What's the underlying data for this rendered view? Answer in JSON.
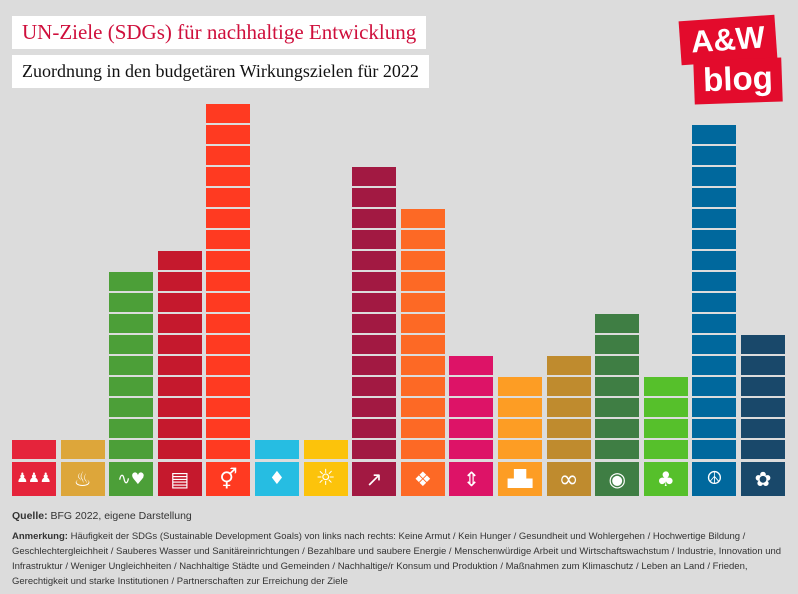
{
  "logo": {
    "line1": "A&W",
    "line2": "blog",
    "color": "#e30b2c"
  },
  "chart_data": {
    "type": "bar",
    "title": "UN-Ziele (SDGs) für nachhaltige Entwicklung",
    "subtitle": "Zuordnung in den budgetären Wirkungszielen für 2022",
    "categories": [
      "Keine Armut",
      "Kein Hunger",
      "Gesundheit und Wohlergehen",
      "Hochwertige Bildung",
      "Geschlechtergleichheit",
      "Sauberes Wasser und Sanitäreinrichtungen",
      "Bezahlbare und saubere Energie",
      "Menschenwürdige Arbeit und Wirtschaftswachstum",
      "Industrie, Innovation und Infrastruktur",
      "Weniger Ungleichheiten",
      "Nachhaltige Städte und Gemeinden",
      "Nachhaltige/r Konsum und Produktion",
      "Maßnahmen zum Klimaschutz",
      "Leben an Land",
      "Frieden, Gerechtigkeit und starke Institutionen",
      "Partnerschaften zur Erreichung der Ziele"
    ],
    "values": [
      1,
      1,
      9,
      10,
      17,
      1,
      1,
      14,
      12,
      5,
      4,
      5,
      7,
      4,
      16,
      6
    ],
    "colors": [
      "#e5243b",
      "#dda63a",
      "#4c9f38",
      "#c5192d",
      "#ff3a21",
      "#26bde2",
      "#fcc30b",
      "#a21942",
      "#fd6925",
      "#dd1367",
      "#fd9d24",
      "#bf8b2e",
      "#3f7e44",
      "#56c02b",
      "#00689d",
      "#19486a"
    ],
    "icons": [
      "no-poverty-icon",
      "zero-hunger-icon",
      "good-health-icon",
      "quality-education-icon",
      "gender-equality-icon",
      "clean-water-icon",
      "clean-energy-icon",
      "decent-work-icon",
      "industry-innovation-icon",
      "reduced-inequalities-icon",
      "sustainable-cities-icon",
      "responsible-consumption-icon",
      "climate-action-icon",
      "life-on-land-icon",
      "peace-justice-icon",
      "partnerships-icon"
    ],
    "grid": false,
    "legend": "none"
  },
  "source": {
    "label": "Quelle:",
    "text": "BFG 2022, eigene Darstellung"
  },
  "note": {
    "label": "Anmerkung:",
    "prefix": "Häufigkeit der SDGs (Sustainable Development Goals) von links nach rechts:",
    "separator": " / "
  }
}
